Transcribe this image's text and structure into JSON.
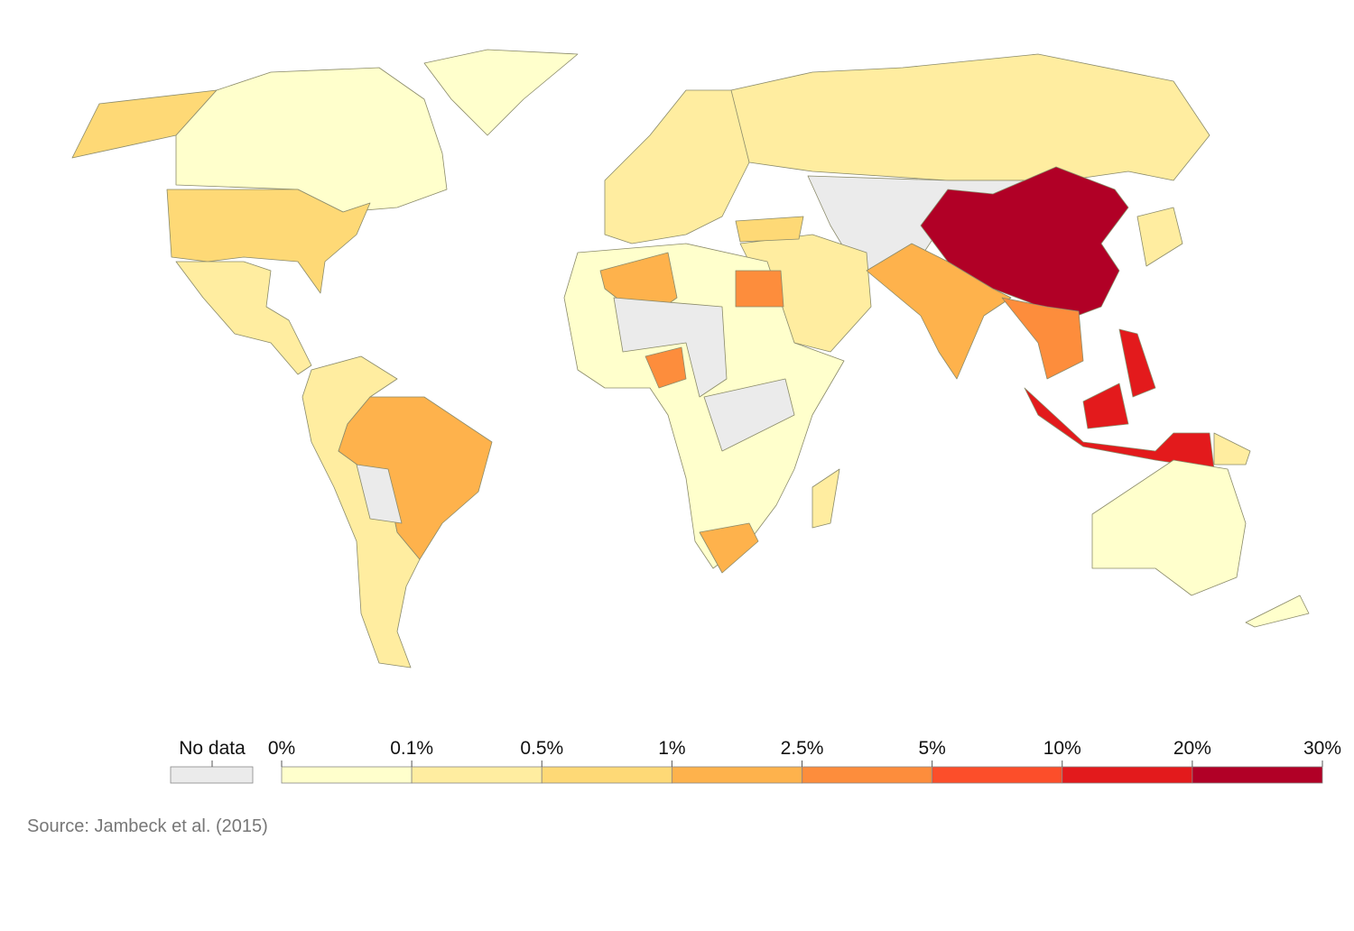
{
  "legend": {
    "no_data_label": "No data",
    "no_data_color": "#ebebeb",
    "ticks": [
      "0%",
      "0.1%",
      "0.5%",
      "1%",
      "2.5%",
      "5%",
      "10%",
      "20%",
      "30%"
    ],
    "colors": [
      "#ffffcc",
      "#ffeda0",
      "#fed976",
      "#feb24c",
      "#fd8d3c",
      "#fc4e2a",
      "#e31a1c",
      "#b10026"
    ]
  },
  "source": "Source: Jambeck et al. (2015)"
}
